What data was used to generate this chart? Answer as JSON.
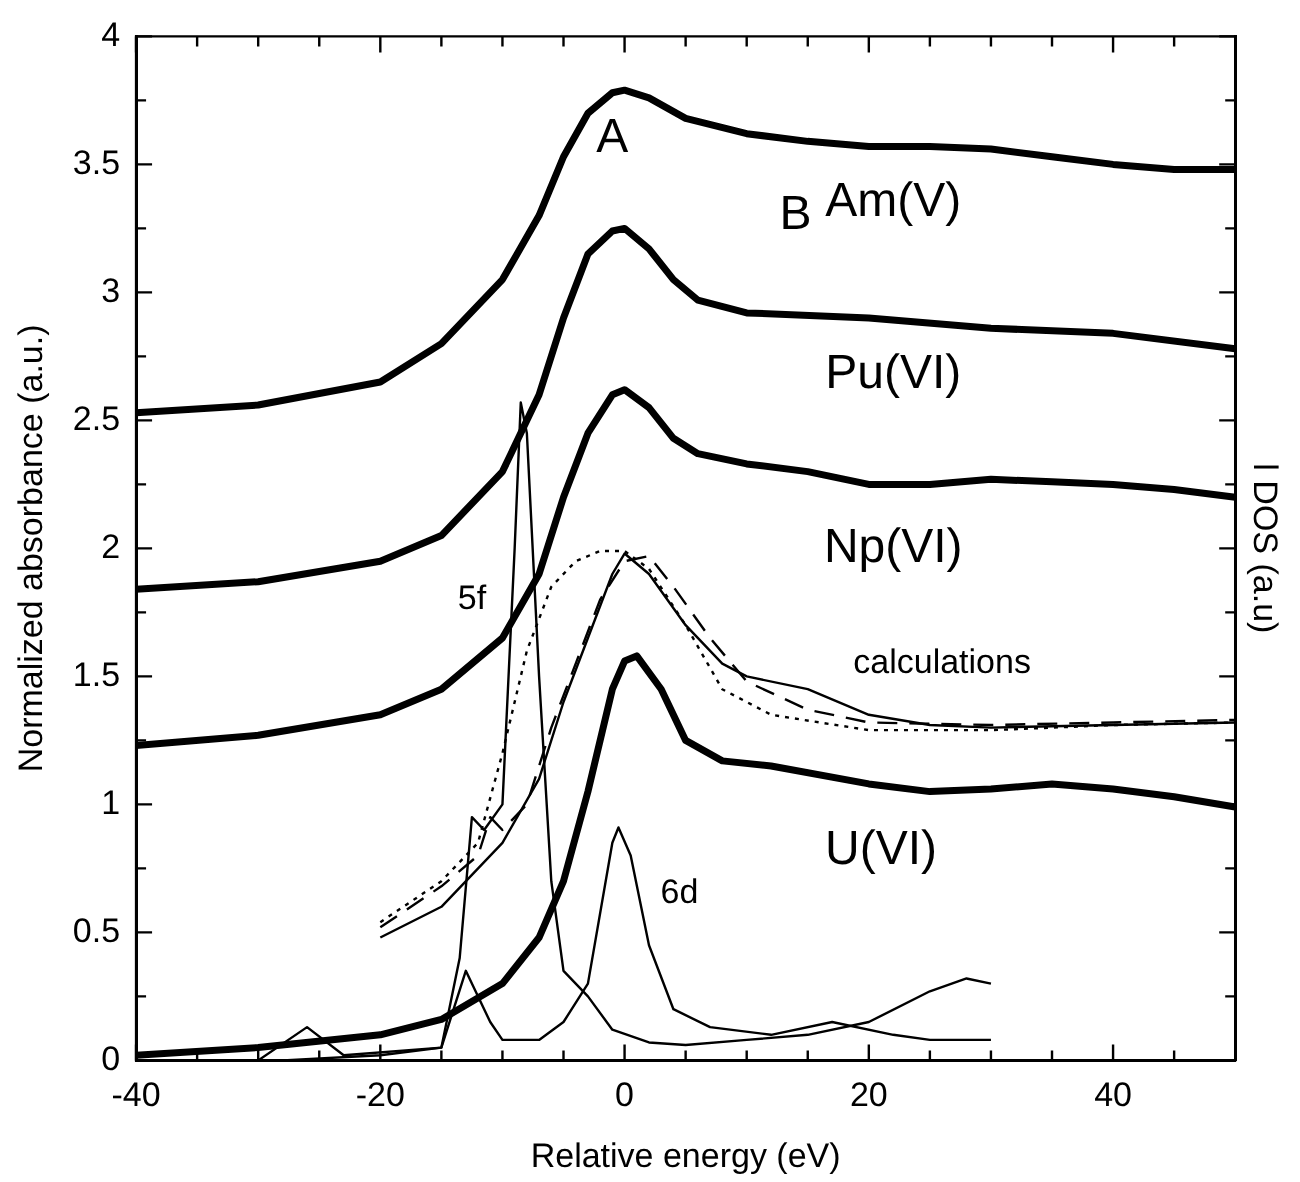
{
  "chart_data": {
    "type": "line",
    "xlabel": "Relative energy (eV)",
    "ylabel": "Normalized absorbance (a.u.)",
    "y2label": "l DOS (a.u)",
    "xlim": [
      -40,
      50
    ],
    "ylim": [
      0,
      4
    ],
    "xticks": [
      -40,
      {
        "value": -35,
        "label": null
      },
      {
        "value": -30,
        "label": null
      },
      {
        "value": -25,
        "label": null
      },
      -20,
      {
        "value": -15,
        "label": null
      },
      {
        "value": -10,
        "label": null
      },
      {
        "value": -5,
        "label": null
      },
      0,
      {
        "value": 5,
        "label": null
      },
      {
        "value": 10,
        "label": null
      },
      {
        "value": 15,
        "label": null
      },
      20,
      {
        "value": 25,
        "label": null
      },
      {
        "value": 30,
        "label": null
      },
      {
        "value": 35,
        "label": null
      },
      40,
      {
        "value": 45,
        "label": null
      },
      {
        "value": 50,
        "label": null
      }
    ],
    "yticks": [
      0,
      {
        "value": 0.25,
        "label": null
      },
      0.5,
      {
        "value": 0.75,
        "label": null
      },
      1,
      {
        "value": 1.25,
        "label": null
      },
      1.5,
      {
        "value": 1.75,
        "label": null
      },
      2,
      {
        "value": 2.25,
        "label": null
      },
      2.5,
      {
        "value": 2.75,
        "label": null
      },
      3,
      {
        "value": 3.25,
        "label": null
      },
      3.5,
      {
        "value": 3.75,
        "label": null
      },
      4
    ],
    "grid": false,
    "marker": "none",
    "annotations": [
      "A",
      "B",
      "calculations"
    ],
    "series": [
      {
        "name": "Am(V)",
        "color": "#000000",
        "x": [
          -40,
          -30,
          -20,
          -15,
          -10,
          -7,
          -5,
          -3,
          -1,
          0,
          2,
          5,
          10,
          15,
          20,
          25,
          30,
          35,
          40,
          45,
          50
        ],
        "values": [
          2.53,
          2.56,
          2.65,
          2.8,
          3.05,
          3.3,
          3.53,
          3.7,
          3.78,
          3.79,
          3.76,
          3.68,
          3.62,
          3.59,
          3.57,
          3.57,
          3.56,
          3.53,
          3.5,
          3.48,
          3.48
        ]
      },
      {
        "name": "Pu(VI)",
        "color": "#000000",
        "x": [
          -40,
          -30,
          -20,
          -15,
          -10,
          -7,
          -5,
          -3,
          -1,
          0,
          2,
          4,
          6,
          10,
          20,
          30,
          40,
          50
        ],
        "values": [
          1.84,
          1.87,
          1.95,
          2.05,
          2.3,
          2.6,
          2.9,
          3.15,
          3.24,
          3.25,
          3.17,
          3.05,
          2.97,
          2.92,
          2.9,
          2.86,
          2.84,
          2.78
        ]
      },
      {
        "name": "Np(VI)",
        "color": "#000000",
        "x": [
          -40,
          -30,
          -20,
          -15,
          -10,
          -7,
          -5,
          -3,
          -1,
          0,
          2,
          4,
          6,
          10,
          15,
          20,
          25,
          30,
          35,
          40,
          45,
          50
        ],
        "values": [
          1.23,
          1.27,
          1.35,
          1.45,
          1.65,
          1.9,
          2.2,
          2.45,
          2.6,
          2.62,
          2.55,
          2.43,
          2.37,
          2.33,
          2.3,
          2.25,
          2.25,
          2.27,
          2.26,
          2.25,
          2.23,
          2.2
        ]
      },
      {
        "name": "U(VI)",
        "color": "#000000",
        "x": [
          -40,
          -30,
          -20,
          -15,
          -10,
          -7,
          -5,
          -3,
          -1,
          0,
          1,
          3,
          5,
          8,
          12,
          20,
          25,
          30,
          35,
          40,
          45,
          50
        ],
        "values": [
          0.02,
          0.05,
          0.1,
          0.16,
          0.3,
          0.48,
          0.7,
          1.05,
          1.45,
          1.56,
          1.58,
          1.45,
          1.25,
          1.17,
          1.15,
          1.08,
          1.05,
          1.06,
          1.08,
          1.06,
          1.03,
          0.99
        ]
      },
      {
        "color": "#000000",
        "x": [
          -20,
          -15,
          -10,
          -7,
          -5,
          -3,
          -1,
          0,
          2,
          5,
          8,
          10,
          15,
          20,
          25,
          30,
          40,
          50
        ],
        "values": [
          0.48,
          0.6,
          0.85,
          1.1,
          1.4,
          1.65,
          1.9,
          1.98,
          1.9,
          1.7,
          1.55,
          1.5,
          1.45,
          1.35,
          1.31,
          1.3,
          1.31,
          1.32
        ]
      },
      {
        "color": "#000000",
        "line_style": "dashed",
        "x": [
          -20,
          -15,
          -12,
          -11,
          -10,
          -8,
          -6,
          -4,
          -2,
          0,
          2,
          4,
          7,
          10,
          15,
          20,
          30,
          40,
          50
        ],
        "values": [
          0.52,
          0.68,
          0.8,
          0.95,
          0.9,
          1.0,
          1.3,
          1.55,
          1.8,
          1.95,
          1.97,
          1.85,
          1.65,
          1.48,
          1.37,
          1.32,
          1.31,
          1.32,
          1.33
        ]
      },
      {
        "color": "#000000",
        "line_style": "dotted",
        "x": [
          -20,
          -15,
          -12,
          -10,
          -8,
          -6,
          -4,
          -2,
          0,
          2,
          5,
          8,
          12,
          20,
          30,
          40,
          50
        ],
        "values": [
          0.54,
          0.7,
          0.85,
          1.2,
          1.6,
          1.85,
          1.95,
          1.99,
          1.99,
          1.92,
          1.7,
          1.45,
          1.35,
          1.29,
          1.29,
          1.31,
          1.32
        ]
      },
      {
        "name": "5f",
        "color": "#000000",
        "x": [
          -28,
          -20,
          -15,
          -13.5,
          -12.5,
          -11.5,
          -10,
          -9,
          -8.5,
          -8,
          -7,
          -6,
          -5,
          -3,
          -1,
          2,
          5,
          10,
          15,
          20,
          25,
          28,
          30
        ],
        "values": [
          0,
          0.02,
          0.05,
          0.4,
          0.95,
          0.9,
          1.0,
          2.0,
          2.57,
          2.45,
          1.5,
          0.7,
          0.35,
          0.25,
          0.12,
          0.07,
          0.06,
          0.08,
          0.1,
          0.15,
          0.27,
          0.32,
          0.3
        ]
      },
      {
        "name": "6d",
        "color": "#000000",
        "x": [
          -30,
          -26,
          -23,
          -15,
          -13,
          -11,
          -10,
          -7,
          -5,
          -3,
          -1,
          -0.5,
          0.5,
          2,
          4,
          7,
          12,
          17,
          22,
          25,
          30
        ],
        "values": [
          0,
          0.13,
          0.02,
          0.05,
          0.35,
          0.15,
          0.08,
          0.08,
          0.15,
          0.3,
          0.85,
          0.91,
          0.8,
          0.45,
          0.2,
          0.13,
          0.1,
          0.15,
          0.1,
          0.08,
          0.08
        ]
      }
    ]
  }
}
